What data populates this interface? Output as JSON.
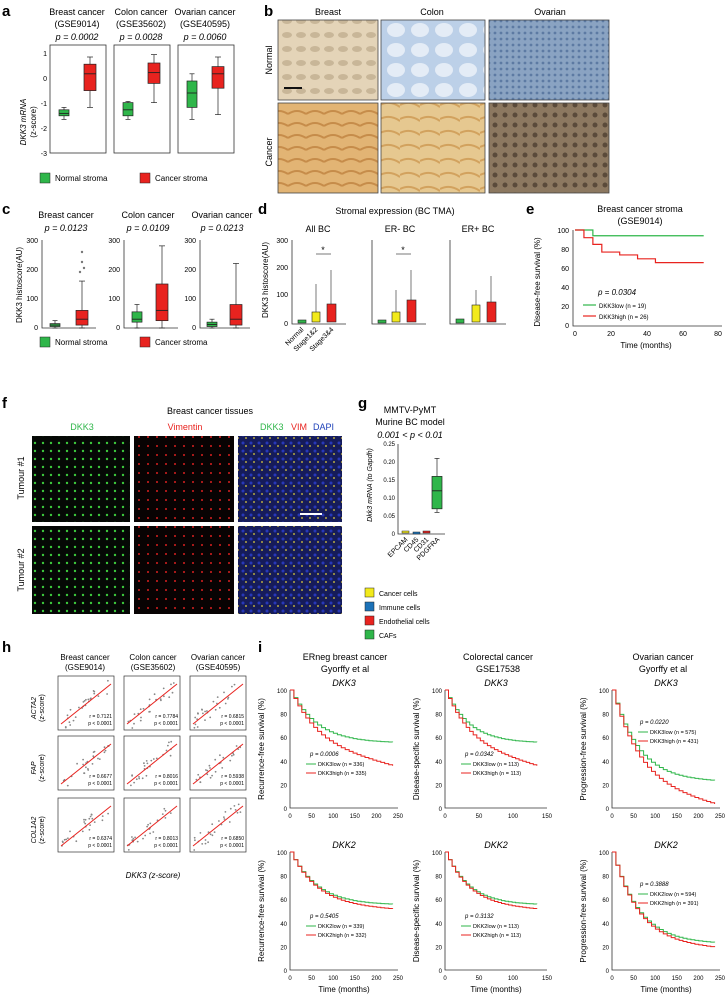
{
  "figure": {
    "panel_labels": [
      "a",
      "b",
      "c",
      "d",
      "e",
      "f",
      "g",
      "h",
      "i"
    ]
  },
  "colors": {
    "green": "#2fb64a",
    "red": "#e8231f",
    "yellow": "#f2ea1c",
    "blue": "#1c72b8",
    "ihc_brown": "#c9a06a",
    "ihc_blue": "#9fb8d8"
  },
  "panel_a": {
    "ylabel": "DKK3 mRNA",
    "ylabel2": "(z-score)",
    "yticks": [
      "1",
      "0",
      "-1",
      "-2",
      "-3"
    ],
    "plots": [
      {
        "title": "Breast cancer",
        "dataset": "(GSE9014)",
        "p": "p = 0.0002"
      },
      {
        "title": "Colon cancer",
        "dataset": "(GSE35602)",
        "p": "p = 0.0028"
      },
      {
        "title": "Ovarian cancer",
        "dataset": "(GSE40595)",
        "p": "p = 0.0060"
      }
    ],
    "legend": [
      "Normal stroma",
      "Cancer stroma"
    ]
  },
  "panel_b": {
    "columns": [
      "Breast",
      "Colon",
      "Ovarian"
    ],
    "rows": [
      "Normal",
      "Cancer"
    ]
  },
  "panel_c": {
    "ylabel": "DKK3 histoscore(AU)",
    "plots": [
      {
        "title": "Breast cancer",
        "p": "p = 0.0123",
        "yticks": [
          "300",
          "200",
          "100",
          "0"
        ]
      },
      {
        "title": "Colon cancer",
        "p": "p = 0.0109",
        "yticks": [
          "300",
          "200",
          "100",
          "0"
        ]
      },
      {
        "title": "Ovarian cancer",
        "p": "p = 0.0213",
        "yticks": [
          "300",
          "200",
          "100",
          "0"
        ]
      }
    ],
    "legend": [
      "Normal stroma",
      "Cancer stroma"
    ]
  },
  "panel_d": {
    "title": "Stromal expression (BC TMA)",
    "ylabel": "DKK3 histoscore(AU)",
    "plots": [
      {
        "title": "All BC",
        "sig": "*"
      },
      {
        "title": "ER- BC",
        "sig": "*"
      },
      {
        "title": "ER+ BC",
        "sig": ""
      }
    ],
    "yticks": [
      "300",
      "200",
      "100",
      "0"
    ],
    "xcats": [
      "Normal",
      "Stage1&2",
      "Stage3&4"
    ]
  },
  "panel_e": {
    "title": "Breast cancer stroma",
    "dataset": "(GSE9014)",
    "ylabel": "Disease-free survival (%)",
    "xlabel": "Time (months)",
    "yticks": [
      "100",
      "80",
      "60",
      "40",
      "20",
      "0"
    ],
    "xticks": [
      "0",
      "20",
      "40",
      "60",
      "80"
    ],
    "p": "p = 0.0304",
    "legend_low": "DKK3low (n = 19)",
    "legend_high": "DKK3high (n = 26)"
  },
  "panel_f": {
    "title": "Breast cancer tissues",
    "col_dkk3": "DKK3",
    "col_vim": "Vimentin",
    "merge_dkk3": "DKK3",
    "merge_vim": "VIM",
    "merge_dapi": "DAPI",
    "rows": [
      "Tumour #1",
      "Tumour #2"
    ]
  },
  "panel_g": {
    "title1": "MMTV-PyMT",
    "title2": "Murine BC model",
    "p": "0.001 < p < 0.01",
    "ylabel": "Dkk3 mRNA (to Gapdh)",
    "yticks": [
      "0.25",
      "0.20",
      "0.15",
      "0.10",
      "0.05",
      "0"
    ],
    "xcats": [
      "EPCAM",
      "CD45",
      "CD31",
      "PDGFRA"
    ],
    "legend": [
      "Cancer cells",
      "Immune cells",
      "Endothelial cells",
      "CAFs"
    ]
  },
  "panel_h": {
    "cols": [
      {
        "title": "Breast cancer",
        "dataset": "(GSE9014)"
      },
      {
        "title": "Colon cancer",
        "dataset": "(GSE35602)"
      },
      {
        "title": "Ovarian cancer",
        "dataset": "(GSE40595)"
      }
    ],
    "rows": [
      "ACTA2",
      "FAP",
      "COL1A2"
    ],
    "zlabel": "(z-score)",
    "xlabel": "DKK3 (z-score)",
    "stats": [
      [
        "r = 0.7121",
        "r = 0.7784",
        "r = 0.6815"
      ],
      [
        "r = 0.6677",
        "r = 0.8016",
        "r = 0.5938"
      ],
      [
        "r = 0.6374",
        "r = 0.8013",
        "r = 0.6850"
      ]
    ],
    "pstat": "p < 0.0001"
  },
  "panel_i": {
    "cols": [
      {
        "title": "ERneg breast cancer",
        "sub": "Gyorffy et al",
        "ylabel": "Recurrence-free survival (%)",
        "xticks": [
          "0",
          "50",
          "100",
          "150",
          "200",
          "250"
        ]
      },
      {
        "title": "Colorectal cancer",
        "sub": "GSE17538",
        "ylabel": "Disease-specific survival (%)",
        "xticks": [
          "0",
          "50",
          "100",
          "150"
        ]
      },
      {
        "title": "Ovarian cancer",
        "sub": "Gyorffy et al",
        "ylabel": "Progression-free survival (%)",
        "xticks": [
          "0",
          "50",
          "100",
          "150",
          "200",
          "250"
        ]
      }
    ],
    "genes": [
      "DKK3",
      "DKK2"
    ],
    "yticks": [
      "100",
      "80",
      "60",
      "40",
      "20",
      "0"
    ],
    "xlabel": "Time (months)",
    "stats": [
      [
        {
          "p": "p = 0.0006",
          "low": "DKK3low (n = 336)",
          "high": "DKK3high (n = 335)"
        },
        {
          "p": "p = 0.0342",
          "low": "DKK3low (n = 113)",
          "high": "DKK3high (n = 113)"
        },
        {
          "p": "p = 0.0220",
          "low": "DKK3low (n = 575)",
          "high": "DKK3high (n = 431)"
        }
      ],
      [
        {
          "p": "p = 0.5405",
          "low": "DKK2low (n = 339)",
          "high": "DKK2high (n = 332)"
        },
        {
          "p": "p = 0.3132",
          "low": "DKK2low (n = 113)",
          "high": "DKK2high (n = 113)"
        },
        {
          "p": "p = 0.3888",
          "low": "DKK2low (n = 594)",
          "high": "DKK2high (n = 391)"
        }
      ]
    ]
  },
  "chart_data": [
    {
      "type": "box",
      "title": "Breast cancer (GSE9014)",
      "ylabel": "DKK3 mRNA (z-score)",
      "ylim": [
        -3,
        1.5
      ],
      "series": [
        {
          "name": "Normal stroma",
          "q1": -1.45,
          "median": -1.35,
          "q3": -1.2,
          "min": -1.6,
          "max": -1.1
        },
        {
          "name": "Cancer stroma",
          "q1": -0.4,
          "median": 0.3,
          "q3": 0.7,
          "min": -1.1,
          "max": 1.0
        }
      ]
    },
    {
      "type": "box",
      "title": "Colon cancer (GSE35602)",
      "ylabel": "DKK3 mRNA (z-score)",
      "ylim": [
        -3,
        1.5
      ],
      "series": [
        {
          "name": "Normal stroma",
          "q1": -1.45,
          "median": -1.2,
          "q3": -0.9,
          "min": -1.6,
          "max": -0.85
        },
        {
          "name": "Cancer stroma",
          "q1": -0.1,
          "median": 0.35,
          "q3": 0.75,
          "min": -0.9,
          "max": 1.1
        }
      ]
    },
    {
      "type": "box",
      "title": "Ovarian cancer (GSE40595)",
      "ylabel": "DKK3 mRNA (z-score)",
      "ylim": [
        -3,
        1.5
      ],
      "series": [
        {
          "name": "Normal stroma",
          "q1": -1.1,
          "median": -0.5,
          "q3": 0.0,
          "min": -1.6,
          "max": 0.3
        },
        {
          "name": "Cancer stroma",
          "q1": -0.3,
          "median": 0.3,
          "q3": 0.6,
          "min": -1.4,
          "max": 1.0
        }
      ]
    },
    {
      "type": "box",
      "title": "Breast cancer histoscore",
      "ylim": [
        0,
        300
      ],
      "series": [
        {
          "name": "Normal stroma",
          "q1": 5,
          "median": 10,
          "q3": 15,
          "min": 0,
          "max": 25
        },
        {
          "name": "Cancer stroma",
          "q1": 10,
          "median": 30,
          "q3": 60,
          "min": 0,
          "max": 160
        }
      ]
    },
    {
      "type": "box",
      "title": "Colon cancer histoscore",
      "ylim": [
        0,
        300
      ],
      "series": [
        {
          "name": "Normal stroma",
          "q1": 20,
          "median": 30,
          "q3": 55,
          "min": 0,
          "max": 80
        },
        {
          "name": "Cancer stroma",
          "q1": 25,
          "median": 60,
          "q3": 150,
          "min": 0,
          "max": 280
        }
      ]
    },
    {
      "type": "box",
      "title": "Ovarian cancer histoscore",
      "ylim": [
        0,
        300
      ],
      "series": [
        {
          "name": "Normal stroma",
          "q1": 5,
          "median": 12,
          "q3": 20,
          "min": 0,
          "max": 30
        },
        {
          "name": "Cancer stroma",
          "q1": 10,
          "median": 30,
          "q3": 80,
          "min": 0,
          "max": 220
        }
      ]
    },
    {
      "type": "line",
      "title": "Breast cancer stroma (GSE9014)",
      "xlabel": "Time (months)",
      "ylabel": "Disease-free survival (%)",
      "xlim": [
        0,
        80
      ],
      "ylim": [
        0,
        100
      ],
      "series": [
        {
          "name": "DKK3low",
          "x": [
            0,
            10,
            72
          ],
          "y": [
            100,
            94,
            94
          ]
        },
        {
          "name": "DKK3high",
          "x": [
            0,
            5,
            10,
            15,
            25,
            35,
            45,
            72
          ],
          "y": [
            100,
            92,
            85,
            77,
            74,
            70,
            66,
            66
          ]
        }
      ]
    },
    {
      "type": "box",
      "title": "MMTV-PyMT Murine BC model",
      "ylabel": "Dkk3 mRNA (to Gapdh)",
      "ylim": [
        0,
        0.25
      ],
      "categories": [
        "EPCAM",
        "CD45",
        "CD31",
        "PDGFRA"
      ],
      "series": [
        {
          "name": "EPCAM",
          "median": 0.005
        },
        {
          "name": "CD45",
          "median": 0.002
        },
        {
          "name": "CD31",
          "median": 0.004
        },
        {
          "name": "PDGFRA",
          "q1": 0.07,
          "median": 0.12,
          "q3": 0.16,
          "min": 0.06,
          "max": 0.21
        }
      ]
    }
  ]
}
